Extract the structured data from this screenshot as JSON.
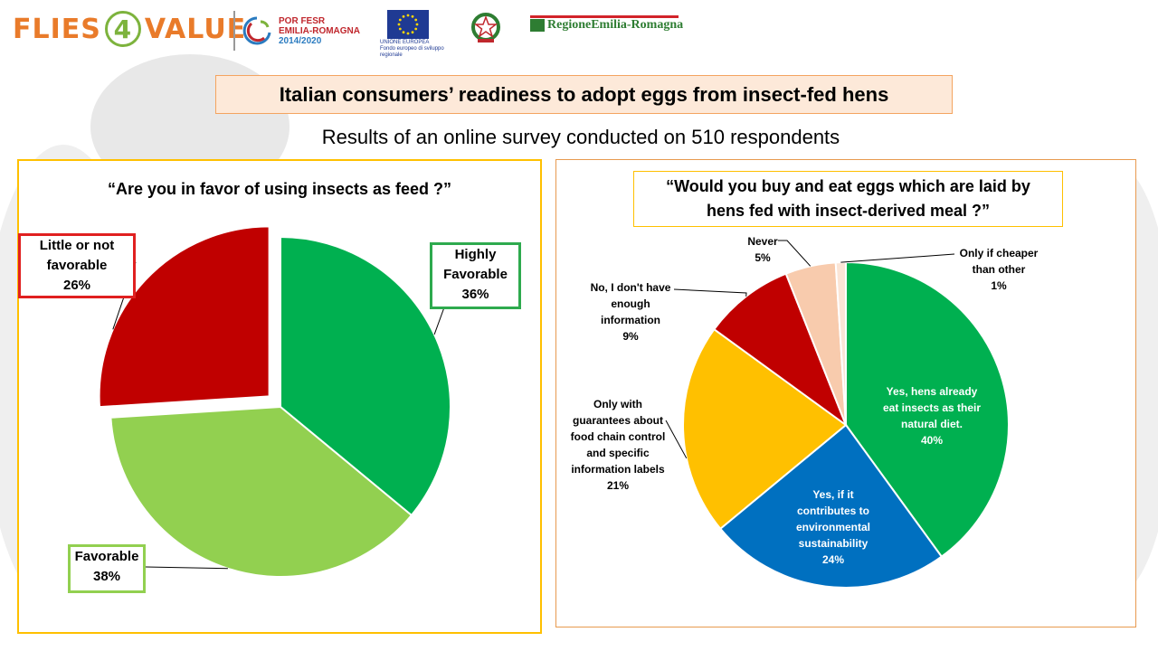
{
  "header": {
    "flies_text_1": "FLIES",
    "flies_text_4": "4",
    "flies_text_2": "VALUE",
    "por_line1": "POR FESR",
    "por_line2": "EMILIA-ROMAGNA",
    "por_line3": "2014/2020",
    "eu_caption_1": "UNIONE EUROPEA",
    "eu_caption_2": "Fondo europeo di sviluppo regionale",
    "region_name": "RegioneEmilia-Romagna"
  },
  "title": "Italian consumers’ readiness to adopt eggs from insect-fed hens",
  "subtitle": "Results of an online survey conducted on 510 respondents",
  "chart_data": [
    {
      "type": "pie",
      "title": "“Are you in favor of using insects as feed ?”",
      "slices": [
        {
          "label_lines": [
            "Highly",
            "Favorable",
            "36%"
          ],
          "value": 36,
          "color": "#00b050"
        },
        {
          "label_lines": [
            "Favorable",
            "38%"
          ],
          "value": 38,
          "color": "#92d050"
        },
        {
          "label_lines": [
            "Little or not",
            "favorable",
            "26%"
          ],
          "value": 26,
          "color": "#c00000",
          "exploded": true
        }
      ]
    },
    {
      "type": "pie",
      "title_lines": [
        "“Would you buy and eat eggs which are laid by",
        "hens fed with insect-derived meal ?”"
      ],
      "slices": [
        {
          "label_lines": [
            "Yes, hens already",
            "eat insects as their",
            "natural diet.",
            "40%"
          ],
          "value": 40,
          "color": "#00b050"
        },
        {
          "label_lines": [
            "Yes, if it",
            "contributes to",
            "environmental",
            "sustainability",
            "24%"
          ],
          "value": 24,
          "color": "#0070c0"
        },
        {
          "label_lines": [
            "Only with",
            "guarantees about",
            "food chain control",
            "and specific",
            "information labels",
            "21%"
          ],
          "value": 21,
          "color": "#ffc000"
        },
        {
          "label_lines": [
            "No, I don't have",
            "enough",
            "information",
            "9%"
          ],
          "value": 9,
          "color": "#c00000"
        },
        {
          "label_lines": [
            "Never",
            "5%"
          ],
          "value": 5,
          "color": "#f8cbad"
        },
        {
          "label_lines": [
            "Only if cheaper",
            "than other",
            "1%"
          ],
          "value": 1,
          "color": "#fbe5d6"
        }
      ]
    }
  ]
}
